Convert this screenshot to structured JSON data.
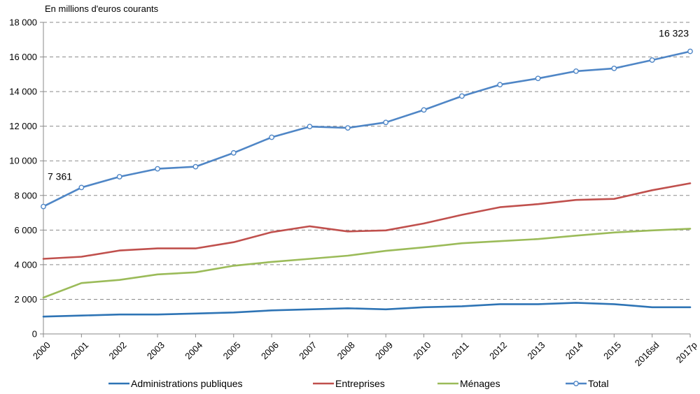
{
  "chart_data": {
    "type": "line",
    "unit_label": "En millions d'euros courants",
    "categories": [
      "2000",
      "2001",
      "2002",
      "2003",
      "2004",
      "2005",
      "2006",
      "2007",
      "2008",
      "2009",
      "2010",
      "2011",
      "2012",
      "2013",
      "2014",
      "2015",
      "2016sd",
      "2017p"
    ],
    "ylim": [
      0,
      18000
    ],
    "yticks": [
      0,
      2000,
      4000,
      6000,
      8000,
      10000,
      12000,
      14000,
      16000,
      18000
    ],
    "ytick_labels": [
      "0",
      "2 000",
      "4 000",
      "6 000",
      "8 000",
      "10 000",
      "12 000",
      "14 000",
      "16 000",
      "18 000"
    ],
    "grid": true,
    "legend_position": "bottom",
    "series": [
      {
        "name": "Administrations publiques",
        "color": "#2e74b5",
        "markers": false,
        "values": [
          1000,
          1060,
          1120,
          1120,
          1180,
          1240,
          1360,
          1420,
          1480,
          1420,
          1540,
          1600,
          1720,
          1720,
          1800,
          1720,
          1540,
          1540
        ]
      },
      {
        "name": "Entreprises",
        "color": "#c0504d",
        "markers": false,
        "values": [
          4340,
          4460,
          4820,
          4940,
          4940,
          5300,
          5880,
          6220,
          5920,
          5980,
          6380,
          6880,
          7320,
          7500,
          7740,
          7800,
          8300,
          8700
        ]
      },
      {
        "name": "Ménages",
        "color": "#9bbb59",
        "markers": false,
        "values": [
          2100,
          2940,
          3120,
          3440,
          3560,
          3940,
          4160,
          4340,
          4520,
          4800,
          5000,
          5240,
          5360,
          5480,
          5680,
          5860,
          5980,
          6080
        ]
      },
      {
        "name": "Total",
        "color": "#4f86c6",
        "markers": true,
        "values": [
          7361,
          8460,
          9080,
          9540,
          9660,
          10460,
          11360,
          11980,
          11900,
          12220,
          12940,
          13740,
          14400,
          14760,
          15180,
          15340,
          15820,
          16323
        ]
      }
    ],
    "annotations": [
      {
        "series": "Total",
        "index": 0,
        "text": "7 361"
      },
      {
        "series": "Total",
        "index": 17,
        "text": "16 323"
      }
    ]
  }
}
